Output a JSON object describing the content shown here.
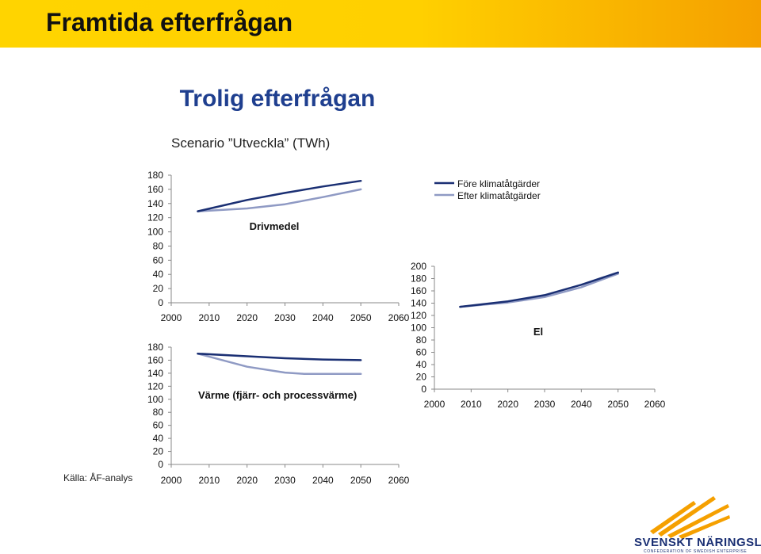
{
  "header": {
    "title": "Framtida efterfrågan"
  },
  "slide": {
    "title": "Trolig efterfrågan",
    "subtitle": "Scenario ”Utveckla” (TWh)",
    "source": "Källa: ÅF-analys"
  },
  "legend": {
    "items": [
      "Före klimatåtgärder",
      "Efter klimatåtgärder"
    ]
  },
  "colors": {
    "before": "#1a2f73",
    "after": "#8f9ac4"
  },
  "logo": {
    "name": "SVENSKT NÄRINGSLIV",
    "tagline": "CONFEDERATION OF SWEDISH ENTERPRISE"
  },
  "chart_data": [
    {
      "id": "drivmedel",
      "type": "line",
      "title": "Drivmedel",
      "x_ticks": [
        2000,
        2010,
        2020,
        2030,
        2040,
        2050,
        2060
      ],
      "y_ticks": [
        0,
        20,
        40,
        60,
        80,
        100,
        120,
        140,
        160,
        180
      ],
      "xlim": [
        2000,
        2060
      ],
      "ylim": [
        0,
        180
      ],
      "series": [
        {
          "name": "Före klimatåtgärder",
          "x": [
            2007,
            2020,
            2030,
            2040,
            2050
          ],
          "y": [
            129,
            145,
            155,
            164,
            172
          ]
        },
        {
          "name": "Efter klimatåtgärder",
          "x": [
            2007,
            2020,
            2030,
            2040,
            2050
          ],
          "y": [
            129,
            133,
            139,
            149,
            160
          ]
        }
      ]
    },
    {
      "id": "varme",
      "type": "line",
      "title": "Värme (fjärr- och processvärme)",
      "x_ticks": [
        2000,
        2010,
        2020,
        2030,
        2040,
        2050,
        2060
      ],
      "y_ticks": [
        0,
        20,
        40,
        60,
        80,
        100,
        120,
        140,
        160,
        180
      ],
      "xlim": [
        2000,
        2060
      ],
      "ylim": [
        0,
        180
      ],
      "series": [
        {
          "name": "Före klimatåtgärder",
          "x": [
            2007,
            2020,
            2030,
            2040,
            2050
          ],
          "y": [
            170,
            166,
            163,
            161,
            160
          ]
        },
        {
          "name": "Efter klimatåtgärder",
          "x": [
            2007,
            2020,
            2030,
            2035,
            2040,
            2050
          ],
          "y": [
            170,
            150,
            141,
            139,
            139,
            139
          ]
        }
      ]
    },
    {
      "id": "el",
      "type": "line",
      "title": "El",
      "x_ticks": [
        2000,
        2010,
        2020,
        2030,
        2040,
        2050,
        2060
      ],
      "y_ticks": [
        0,
        20,
        40,
        60,
        80,
        100,
        120,
        140,
        160,
        180,
        200
      ],
      "xlim": [
        2000,
        2060
      ],
      "ylim": [
        0,
        200
      ],
      "series": [
        {
          "name": "Före klimatåtgärder",
          "x": [
            2007,
            2020,
            2030,
            2040,
            2050
          ],
          "y": [
            134,
            143,
            153,
            170,
            190
          ]
        },
        {
          "name": "Efter klimatåtgärder",
          "x": [
            2007,
            2020,
            2030,
            2040,
            2050
          ],
          "y": [
            134,
            141,
            150,
            166,
            188
          ]
        }
      ]
    }
  ]
}
